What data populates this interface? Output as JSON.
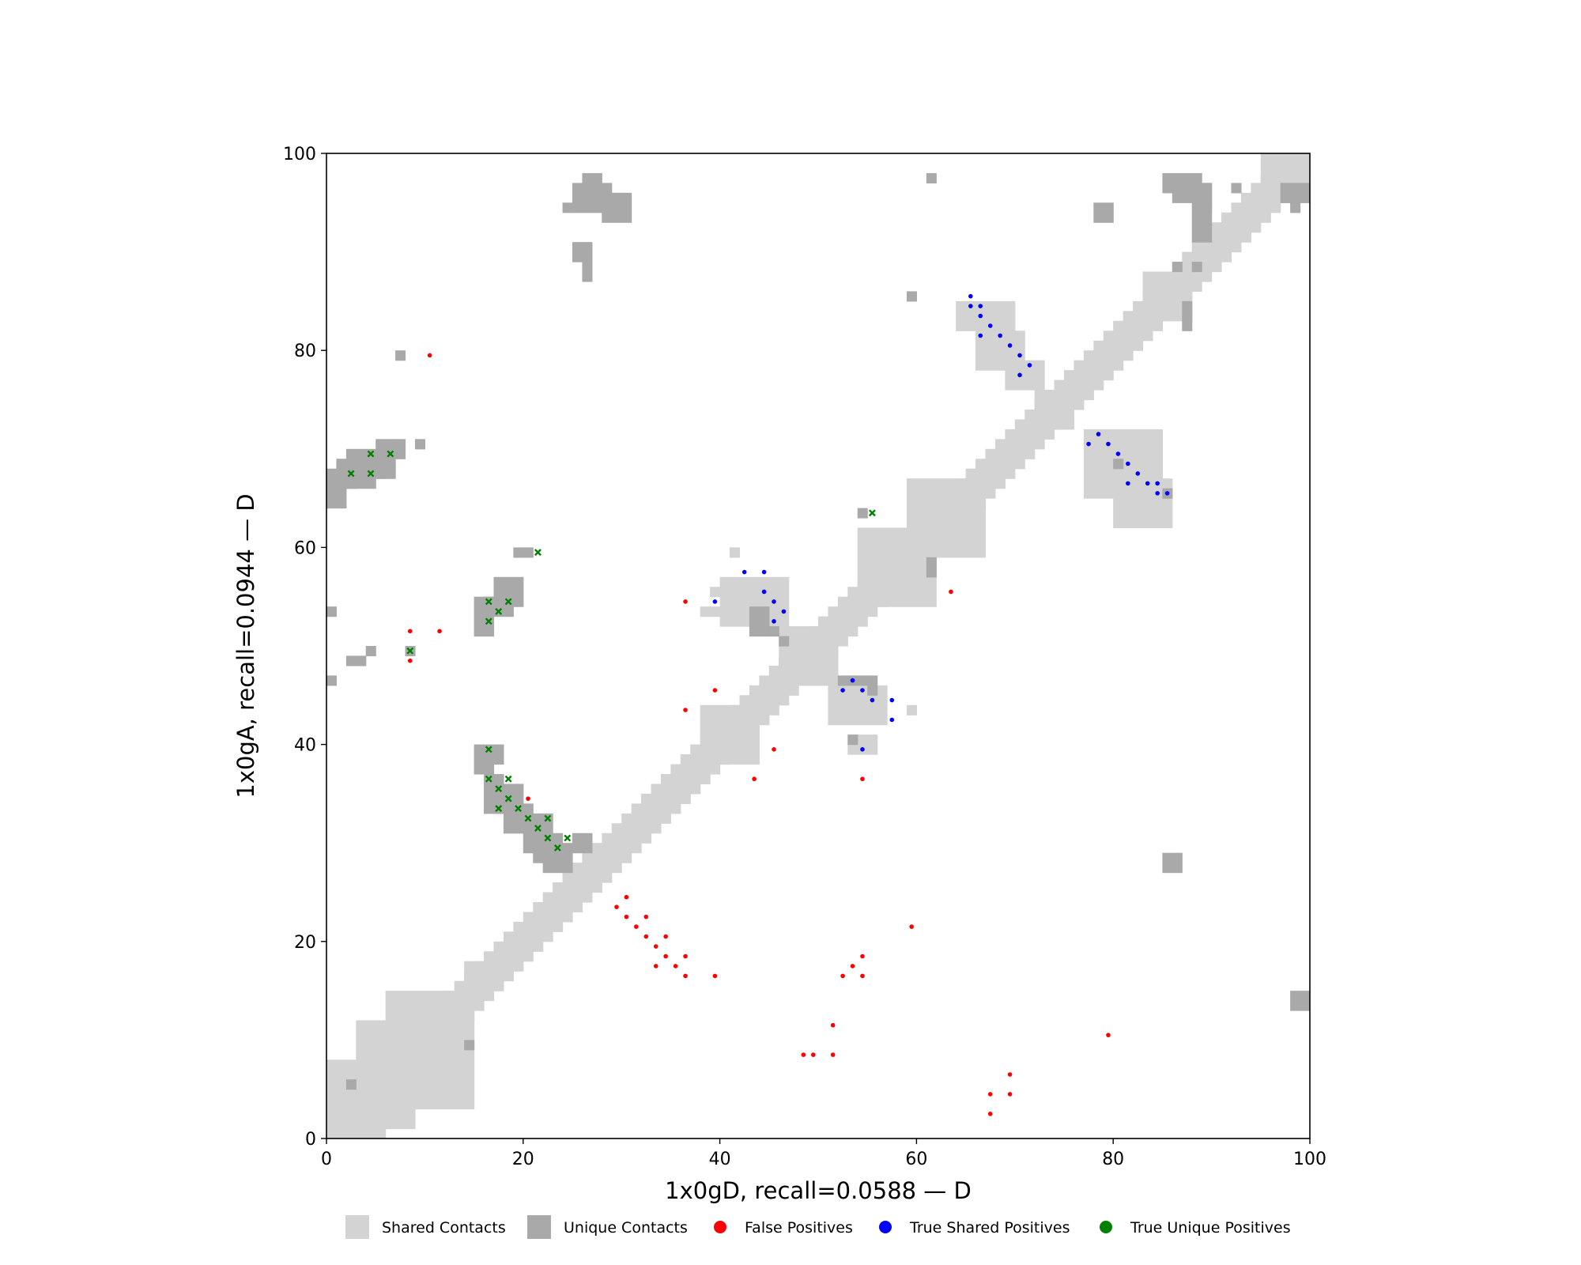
{
  "chart_data": {
    "type": "scatter",
    "title": "",
    "xlabel": "1x0gD, recall=0.0588 — D",
    "ylabel": "1x0gA, recall=0.0944 — D",
    "xlim": [
      0,
      100
    ],
    "ylim": [
      0,
      100
    ],
    "xticks": [
      "0",
      "20",
      "40",
      "60",
      "80",
      "100"
    ],
    "yticks": [
      "0",
      "20",
      "40",
      "60",
      "80",
      "100"
    ],
    "grid": false,
    "legend_position": "bottom",
    "colors": {
      "shared": "#d3d3d3",
      "unique": "#a9a9a9",
      "false_pos": "#ff0000",
      "true_shared": "#0000ff",
      "true_unique": "#008000"
    },
    "legend": [
      {
        "label": "Shared Contacts",
        "kind": "square",
        "color": "#d3d3d3"
      },
      {
        "label": "Unique Contacts",
        "kind": "square",
        "color": "#a9a9a9"
      },
      {
        "label": "False Positives",
        "kind": "dot",
        "color": "#ff0000"
      },
      {
        "label": "True Shared Positives",
        "kind": "dot",
        "color": "#0000ff"
      },
      {
        "label": "True Unique Positives",
        "kind": "dot",
        "color": "#008000"
      }
    ],
    "series": [
      {
        "name": "Shared Contacts",
        "kind": "cells",
        "diagonal_band": {
          "from": 0,
          "to": 100,
          "half_width": 2
        },
        "blocks": [
          [
            0,
            0,
            6,
            8
          ],
          [
            3,
            1,
            9,
            12
          ],
          [
            6,
            3,
            15,
            15
          ],
          [
            14,
            15,
            18,
            18
          ],
          [
            38,
            38,
            44,
            44
          ],
          [
            46,
            46,
            52,
            52
          ],
          [
            54,
            54,
            62,
            62
          ],
          [
            59,
            59,
            67,
            67
          ],
          [
            72,
            72,
            76,
            76
          ],
          [
            83,
            83,
            88,
            88
          ],
          [
            95,
            95,
            100,
            100
          ],
          [
            64,
            82,
            70,
            85
          ],
          [
            66,
            78,
            71,
            82
          ],
          [
            69,
            76,
            73,
            79
          ],
          [
            77,
            65,
            85,
            72
          ],
          [
            80,
            62,
            86,
            67
          ],
          [
            40,
            52,
            47,
            57
          ],
          [
            51,
            42,
            57,
            46
          ],
          [
            53,
            39,
            56,
            41
          ],
          [
            59,
            43,
            60,
            44
          ],
          [
            41,
            59,
            42,
            60
          ],
          [
            38,
            53,
            40,
            54
          ],
          [
            39,
            55,
            40,
            56
          ]
        ]
      },
      {
        "name": "Unique Contacts",
        "kind": "cells",
        "blocks": [
          [
            0,
            64,
            2,
            68
          ],
          [
            1,
            66,
            3,
            69
          ],
          [
            2,
            66,
            5,
            70
          ],
          [
            4,
            67,
            6,
            69
          ],
          [
            5,
            67,
            7,
            71
          ],
          [
            7,
            69,
            8,
            71
          ],
          [
            7,
            79,
            8,
            80
          ],
          [
            9,
            70,
            10,
            71
          ],
          [
            0,
            53,
            1,
            54
          ],
          [
            0,
            46,
            1,
            47
          ],
          [
            2,
            48,
            4,
            49
          ],
          [
            4,
            49,
            5,
            50
          ],
          [
            8,
            49,
            9,
            50
          ],
          [
            15,
            51,
            17,
            55
          ],
          [
            16,
            53,
            19,
            55
          ],
          [
            17,
            54,
            20,
            57
          ],
          [
            19,
            59,
            21,
            60
          ],
          [
            15,
            37,
            17,
            40
          ],
          [
            17,
            38,
            18,
            40
          ],
          [
            16,
            33,
            18,
            37
          ],
          [
            17,
            33,
            20,
            36
          ],
          [
            18,
            31,
            21,
            34
          ],
          [
            20,
            29,
            23,
            33
          ],
          [
            21,
            28,
            24,
            31
          ],
          [
            22,
            27,
            25,
            30
          ],
          [
            25,
            29,
            27,
            31
          ],
          [
            24,
            94,
            25,
            95
          ],
          [
            25,
            94,
            29,
            97
          ],
          [
            26,
            96,
            28,
            98
          ],
          [
            28,
            93,
            31,
            96
          ],
          [
            25,
            89,
            27,
            91
          ],
          [
            26,
            87,
            27,
            89
          ],
          [
            14,
            9,
            15,
            10
          ],
          [
            2,
            5,
            3,
            6
          ],
          [
            61,
            97,
            62,
            98
          ],
          [
            59,
            85,
            60,
            86
          ],
          [
            78,
            93,
            80,
            95
          ],
          [
            85,
            96,
            89,
            98
          ],
          [
            86,
            95,
            90,
            97
          ],
          [
            88,
            91,
            90,
            95
          ],
          [
            89,
            94,
            90,
            97
          ],
          [
            97,
            95,
            100,
            97
          ],
          [
            98,
            94,
            99,
            95
          ],
          [
            92,
            96,
            93,
            97
          ],
          [
            88,
            88,
            89,
            89
          ],
          [
            86,
            88,
            87,
            89
          ],
          [
            87,
            82,
            88,
            84
          ],
          [
            87,
            84,
            88,
            85
          ],
          [
            80,
            68,
            81,
            69
          ],
          [
            85,
            65,
            86,
            66
          ],
          [
            54,
            63,
            55,
            64
          ],
          [
            61,
            57,
            62,
            59
          ],
          [
            52,
            46,
            55,
            47
          ],
          [
            55,
            45,
            56,
            47
          ],
          [
            53,
            40,
            54,
            41
          ],
          [
            43,
            51,
            45,
            54
          ],
          [
            45,
            51,
            46,
            52
          ],
          [
            46,
            50,
            47,
            51
          ],
          [
            85,
            27,
            87,
            29
          ],
          [
            98,
            13,
            100,
            15
          ]
        ]
      },
      {
        "name": "False Positives",
        "kind": "dot",
        "points": [
          [
            10,
            79
          ],
          [
            8,
            51
          ],
          [
            11,
            51
          ],
          [
            8,
            48
          ],
          [
            36,
            54
          ],
          [
            36,
            43
          ],
          [
            39,
            45
          ],
          [
            43,
            36
          ],
          [
            45,
            39
          ],
          [
            63,
            55
          ],
          [
            54,
            36
          ],
          [
            20,
            34
          ],
          [
            29,
            23
          ],
          [
            30,
            24
          ],
          [
            30,
            22
          ],
          [
            31,
            21
          ],
          [
            32,
            22
          ],
          [
            32,
            20
          ],
          [
            33,
            19
          ],
          [
            34,
            20
          ],
          [
            33,
            17
          ],
          [
            34,
            18
          ],
          [
            35,
            17
          ],
          [
            36,
            18
          ],
          [
            36,
            16
          ],
          [
            39,
            16
          ],
          [
            59,
            21
          ],
          [
            52,
            16
          ],
          [
            53,
            17
          ],
          [
            54,
            18
          ],
          [
            54,
            16
          ],
          [
            51,
            11
          ],
          [
            48,
            8
          ],
          [
            49,
            8
          ],
          [
            51,
            8
          ],
          [
            79,
            10
          ],
          [
            69,
            6
          ],
          [
            67,
            4
          ],
          [
            69,
            4
          ],
          [
            67,
            2
          ]
        ]
      },
      {
        "name": "True Shared Positives",
        "kind": "dot",
        "points": [
          [
            65,
            85
          ],
          [
            65,
            84
          ],
          [
            66,
            84
          ],
          [
            66,
            83
          ],
          [
            67,
            82
          ],
          [
            66,
            81
          ],
          [
            68,
            81
          ],
          [
            69,
            80
          ],
          [
            70,
            79
          ],
          [
            71,
            78
          ],
          [
            70,
            77
          ],
          [
            77,
            70
          ],
          [
            78,
            71
          ],
          [
            79,
            70
          ],
          [
            80,
            69
          ],
          [
            81,
            68
          ],
          [
            82,
            67
          ],
          [
            83,
            66
          ],
          [
            84,
            66
          ],
          [
            81,
            66
          ],
          [
            84,
            65
          ],
          [
            85,
            65
          ],
          [
            42,
            57
          ],
          [
            44,
            57
          ],
          [
            44,
            55
          ],
          [
            45,
            54
          ],
          [
            46,
            53
          ],
          [
            39,
            54
          ],
          [
            45,
            52
          ],
          [
            53,
            46
          ],
          [
            52,
            45
          ],
          [
            54,
            45
          ],
          [
            55,
            44
          ],
          [
            57,
            44
          ],
          [
            57,
            42
          ],
          [
            54,
            39
          ]
        ]
      },
      {
        "name": "True Unique Positives",
        "kind": "cross",
        "points": [
          [
            4,
            69
          ],
          [
            6,
            69
          ],
          [
            2,
            67
          ],
          [
            4,
            67
          ],
          [
            16,
            54
          ],
          [
            18,
            54
          ],
          [
            17,
            53
          ],
          [
            16,
            52
          ],
          [
            21,
            59
          ],
          [
            8,
            49
          ],
          [
            55,
            63
          ],
          [
            16,
            39
          ],
          [
            16,
            36
          ],
          [
            18,
            36
          ],
          [
            17,
            35
          ],
          [
            18,
            34
          ],
          [
            17,
            33
          ],
          [
            19,
            33
          ],
          [
            20,
            32
          ],
          [
            22,
            32
          ],
          [
            21,
            31
          ],
          [
            22,
            30
          ],
          [
            24,
            30
          ],
          [
            23,
            29
          ]
        ]
      }
    ]
  }
}
